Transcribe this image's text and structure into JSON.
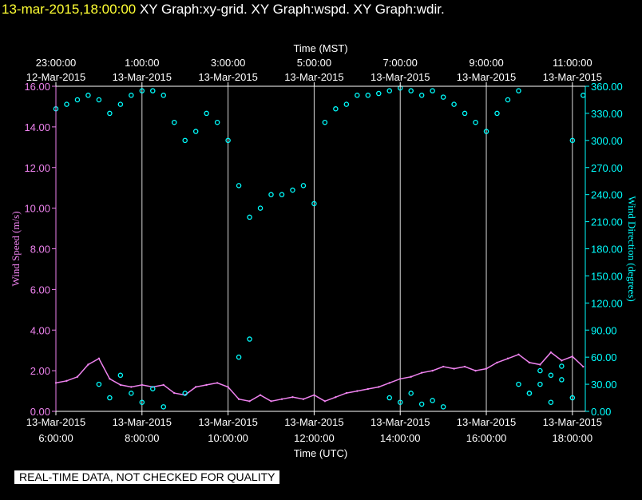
{
  "header": {
    "timestamp": "13-mar-2015,18:00:00",
    "graphs": " XY Graph:xy-grid.  XY Graph:wspd.  XY Graph:wdir."
  },
  "footer": {
    "disclaimer": "REAL-TIME DATA, NOT CHECKED FOR QUALITY"
  },
  "colors": {
    "background": "#000000",
    "wind_speed": "#ee82ee",
    "wind_direction": "#00ffff",
    "grid": "#ffffff",
    "title_timestamp": "#ffff33"
  },
  "chart_data": {
    "type": "scatter",
    "grid": true,
    "x_range_utc_hours": [
      6.0,
      18.3
    ],
    "top_axis": {
      "label": "Time (MST)",
      "ticks": [
        {
          "time": "23:00:00",
          "date": "12-Mar-2015"
        },
        {
          "time": "1:00:00",
          "date": "13-Mar-2015"
        },
        {
          "time": "3:00:00",
          "date": "13-Mar-2015"
        },
        {
          "time": "5:00:00",
          "date": "13-Mar-2015"
        },
        {
          "time": "7:00:00",
          "date": "13-Mar-2015"
        },
        {
          "time": "9:00:00",
          "date": "13-Mar-2015"
        },
        {
          "time": "11:00:00",
          "date": "13-Mar-2015"
        }
      ]
    },
    "bottom_axis": {
      "label": "Time (UTC)",
      "ticks": [
        {
          "time": "6:00:00",
          "date": "13-Mar-2015"
        },
        {
          "time": "8:00:00",
          "date": "13-Mar-2015"
        },
        {
          "time": "10:00:00",
          "date": "13-Mar-2015"
        },
        {
          "time": "12:00:00",
          "date": "13-Mar-2015"
        },
        {
          "time": "14:00:00",
          "date": "13-Mar-2015"
        },
        {
          "time": "16:00:00",
          "date": "13-Mar-2015"
        },
        {
          "time": "18:00:00",
          "date": "13-Mar-2015"
        }
      ]
    },
    "left_axis": {
      "label": "Wind Speed (m/s)",
      "ylim": [
        0,
        16
      ],
      "ticks": [
        "0.00",
        "2.00",
        "4.00",
        "6.00",
        "8.00",
        "10.00",
        "12.00",
        "14.00",
        "16.00"
      ]
    },
    "right_axis": {
      "label": "Wind Direction (degrees)",
      "ylim": [
        0,
        360
      ],
      "ticks": [
        "0.00",
        "30.00",
        "60.00",
        "90.00",
        "120.00",
        "150.00",
        "180.00",
        "210.00",
        "240.00",
        "270.00",
        "300.00",
        "330.00",
        "360.00"
      ]
    },
    "series": [
      {
        "name": "wspd",
        "style": "line",
        "axis": "left",
        "x_utc_hours": [
          6.0,
          6.25,
          6.5,
          6.75,
          7.0,
          7.25,
          7.5,
          7.75,
          8.0,
          8.25,
          8.5,
          8.75,
          9.0,
          9.25,
          9.5,
          9.75,
          10.0,
          10.25,
          10.5,
          10.75,
          11.0,
          11.25,
          11.5,
          11.75,
          12.0,
          12.25,
          12.5,
          12.75,
          13.0,
          13.25,
          13.5,
          13.75,
          14.0,
          14.25,
          14.5,
          14.75,
          15.0,
          15.25,
          15.5,
          15.75,
          16.0,
          16.25,
          16.5,
          16.75,
          17.0,
          17.25,
          17.5,
          17.75,
          18.0,
          18.25
        ],
        "y": [
          1.4,
          1.5,
          1.7,
          2.3,
          2.6,
          1.6,
          1.3,
          1.2,
          1.3,
          1.2,
          1.3,
          0.9,
          0.8,
          1.2,
          1.3,
          1.4,
          1.2,
          0.6,
          0.5,
          0.8,
          0.5,
          0.6,
          0.7,
          0.6,
          0.8,
          0.5,
          0.7,
          0.9,
          1.0,
          1.1,
          1.2,
          1.4,
          1.6,
          1.7,
          1.9,
          2.0,
          2.2,
          2.1,
          2.2,
          2.0,
          2.1,
          2.4,
          2.6,
          2.8,
          2.4,
          2.3,
          2.9,
          2.5,
          2.7,
          2.2
        ]
      },
      {
        "name": "wdir",
        "style": "circles",
        "axis": "right",
        "x_utc_hours": [
          6.0,
          6.25,
          6.5,
          6.75,
          7.0,
          7.25,
          7.5,
          7.75,
          8.0,
          8.25,
          8.5,
          8.75,
          9.0,
          9.25,
          9.5,
          9.75,
          10.0,
          10.25,
          10.5,
          10.75,
          11.0,
          11.25,
          11.5,
          11.75,
          12.0,
          12.25,
          12.5,
          12.75,
          13.0,
          13.25,
          13.5,
          13.75,
          14.0,
          14.25,
          14.5,
          14.75,
          15.0,
          15.25,
          15.5,
          15.75,
          16.0,
          16.25,
          16.5,
          16.75,
          17.0,
          17.25,
          17.5,
          17.75,
          18.0,
          18.25
        ],
        "y": [
          335,
          340,
          345,
          350,
          345,
          330,
          340,
          350,
          355,
          355,
          350,
          320,
          300,
          310,
          330,
          320,
          300,
          250,
          215,
          225,
          240,
          240,
          245,
          250,
          230,
          320,
          335,
          340,
          350,
          350,
          352,
          355,
          358,
          355,
          350,
          355,
          348,
          340,
          330,
          320,
          310,
          330,
          345,
          355,
          20,
          30,
          40,
          50,
          300,
          350
        ]
      },
      {
        "name": "wdir-low",
        "style": "circles",
        "axis": "right",
        "x_utc_hours": [
          7.0,
          7.25,
          7.5,
          7.75,
          8.0,
          8.25,
          8.5,
          9.0,
          10.25,
          10.5,
          13.75,
          14.0,
          14.25,
          14.5,
          14.75,
          15.0,
          16.75,
          17.0,
          17.25,
          17.5,
          17.75,
          18.0
        ],
        "y": [
          30,
          15,
          40,
          20,
          10,
          25,
          5,
          20,
          60,
          80,
          15,
          10,
          20,
          8,
          12,
          5,
          30,
          20,
          45,
          10,
          35,
          15
        ]
      }
    ]
  }
}
